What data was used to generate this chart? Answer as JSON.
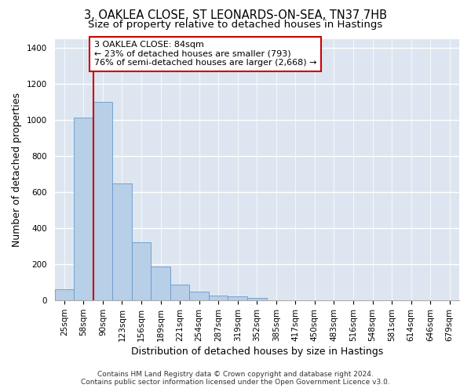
{
  "title_line1": "3, OAKLEA CLOSE, ST LEONARDS-ON-SEA, TN37 7HB",
  "title_line2": "Size of property relative to detached houses in Hastings",
  "xlabel": "Distribution of detached houses by size in Hastings",
  "ylabel": "Number of detached properties",
  "bar_color": "#b8cfe8",
  "bar_edge_color": "#6699cc",
  "background_color": "#dde6f0",
  "grid_color": "#ffffff",
  "categories": [
    "25sqm",
    "58sqm",
    "90sqm",
    "123sqm",
    "156sqm",
    "189sqm",
    "221sqm",
    "254sqm",
    "287sqm",
    "319sqm",
    "352sqm",
    "385sqm",
    "417sqm",
    "450sqm",
    "483sqm",
    "516sqm",
    "548sqm",
    "581sqm",
    "614sqm",
    "646sqm",
    "679sqm"
  ],
  "values": [
    60,
    1015,
    1100,
    648,
    325,
    188,
    90,
    47,
    28,
    23,
    15,
    0,
    0,
    0,
    0,
    0,
    0,
    0,
    0,
    0,
    0
  ],
  "ylim": [
    0,
    1450
  ],
  "yticks": [
    0,
    200,
    400,
    600,
    800,
    1000,
    1200,
    1400
  ],
  "red_line_x": 1.5,
  "red_line_color": "#cc0000",
  "annotation_text": "3 OAKLEA CLOSE: 84sqm\n← 23% of detached houses are smaller (793)\n76% of semi-detached houses are larger (2,668) →",
  "annotation_box_color": "#ffffff",
  "annotation_box_edge_color": "#cc0000",
  "footer_line1": "Contains HM Land Registry data © Crown copyright and database right 2024.",
  "footer_line2": "Contains public sector information licensed under the Open Government Licence v3.0.",
  "title_fontsize": 10.5,
  "subtitle_fontsize": 9.5,
  "tick_fontsize": 7.5,
  "ylabel_fontsize": 9,
  "xlabel_fontsize": 9,
  "annotation_fontsize": 8,
  "footer_fontsize": 6.5
}
